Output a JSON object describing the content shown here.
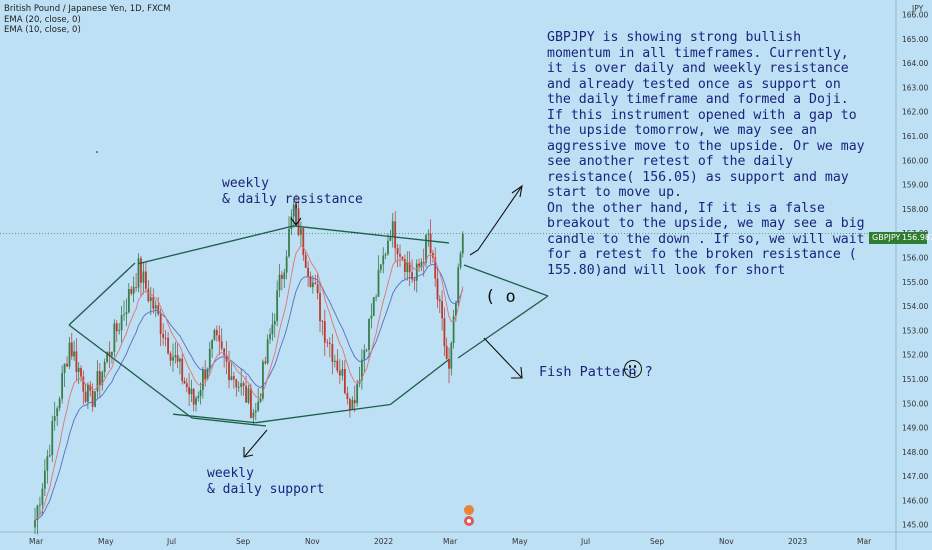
{
  "header": {
    "symbol_line": "British Pound / Japanese Yen, 1D, FXCM",
    "ema20": "EMA (20, close, 0)",
    "ema10": "EMA (10, close, 0)"
  },
  "price_tag": {
    "symbol": "GBPJPY",
    "value": "156.982",
    "color": "#2e7d32"
  },
  "annotations": {
    "note": "GBPJPY is showing strong bullish momentum in all timeframes. Currently, it is over daily and weekly resistance and already tested once as support on the daily timeframe and formed a Doji.\nIf this instrument opened with a gap to the upside tomorrow, we may see an aggressive move to the upside. Or we may see another retest of the daily resistance( 156.05) as support and may start to move up.\nOn the other hand, If it is a false breakout to the upside, we may see a big candle to the down . If so, we will wait for a retest fo the broken resistance ( 155.80)and will look for short",
    "resistance_label": "weekly\n& daily resistance",
    "support_label": "weekly\n& daily support",
    "fish_label": "Fish Pattern ?",
    "fish_eye": "( o"
  },
  "chart_data": {
    "type": "candlestick",
    "currency": "JPY",
    "y_axis_ticks": [
      145.0,
      146.0,
      147.0,
      148.0,
      149.0,
      150.0,
      151.0,
      152.0,
      153.0,
      154.0,
      155.0,
      156.0,
      157.0,
      158.0,
      159.0,
      160.0,
      161.0,
      162.0,
      163.0,
      164.0,
      165.0,
      166.0
    ],
    "ylim": [
      144.7,
      166.6
    ],
    "x_axis_ticks": [
      "Mar",
      "May",
      "Jul",
      "Sep",
      "Nov",
      "2022",
      "Mar",
      "May",
      "Jul",
      "Sep",
      "Nov",
      "2023",
      "Mar"
    ],
    "last_price": 156.982,
    "price_path_anchors": [
      {
        "month": "Mar-21",
        "price": 145.2
      },
      {
        "month": "Apr-21",
        "price": 152.5
      },
      {
        "month": "Apr-21 late",
        "price": 150.0
      },
      {
        "month": "Jun-21",
        "price": 155.5
      },
      {
        "month": "Jul-21",
        "price": 152.0
      },
      {
        "month": "Jul-21 late",
        "price": 150.0
      },
      {
        "month": "Aug-21",
        "price": 152.5
      },
      {
        "month": "Sep-21",
        "price": 149.6
      },
      {
        "month": "Oct-21",
        "price": 158.0
      },
      {
        "month": "Nov-21",
        "price": 153.0
      },
      {
        "month": "Dec-21",
        "price": 150.0
      },
      {
        "month": "Jan-22",
        "price": 157.3
      },
      {
        "month": "Feb-22",
        "price": 155.0
      },
      {
        "month": "Feb-22 late",
        "price": 156.8
      },
      {
        "month": "Mar-22",
        "price": 151.2
      },
      {
        "month": "Mar-22 late",
        "price": 156.982
      }
    ],
    "trendlines": [
      {
        "name": "resistance",
        "from": {
          "month": "Jun-21",
          "price": 155.75
        },
        "to": {
          "month": "Oct-21",
          "price": 157.3
        }
      },
      {
        "name": "resistance",
        "from": {
          "month": "Oct-21",
          "price": 157.3
        },
        "to": {
          "month": "Mar-22",
          "price": 156.6
        }
      },
      {
        "name": "support",
        "from": {
          "month": "Jul-21",
          "price": 149.55
        },
        "to": {
          "month": "Sep-21",
          "price": 149.2
        }
      },
      {
        "name": "support",
        "from": {
          "month": "Sep-21",
          "price": 149.2
        },
        "to": {
          "month": "Jan-22",
          "price": 149.95
        }
      },
      {
        "name": "support",
        "from": {
          "month": "Jan-22",
          "price": 149.95
        },
        "to": {
          "month": "Mar-22",
          "price": 151.8
        }
      }
    ]
  }
}
